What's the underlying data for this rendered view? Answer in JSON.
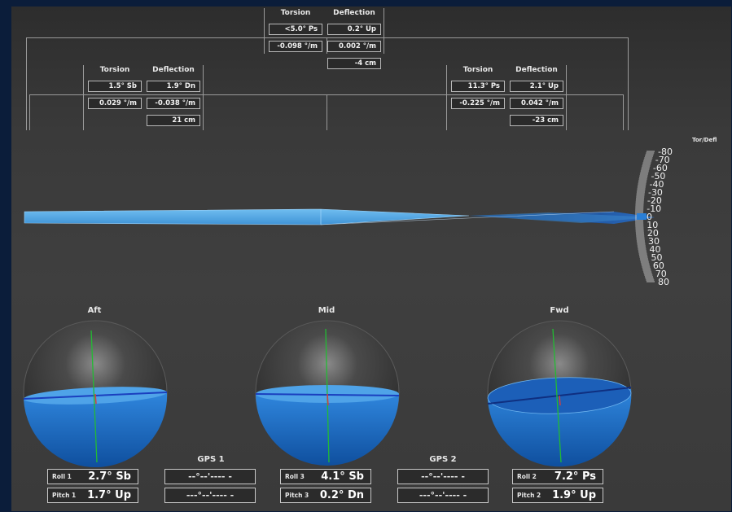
{
  "top_group": {
    "torsion_header": "Torsion",
    "deflection_header": "Deflection",
    "torsion_values": [
      "<5.0° Ps",
      "-0.098 °/m"
    ],
    "deflection_values": [
      "0.2° Up",
      "0.002 °/m",
      "-4 cm"
    ]
  },
  "left_group": {
    "torsion_header": "Torsion",
    "deflection_header": "Deflection",
    "torsion_values": [
      "1.5° Sb",
      "0.029 °/m"
    ],
    "deflection_values": [
      "1.9° Dn",
      "-0.038 °/m",
      "21 cm"
    ]
  },
  "right_group": {
    "torsion_header": "Torsion",
    "deflection_header": "Deflection",
    "torsion_values": [
      "11.3° Ps",
      "-0.225 °/m"
    ],
    "deflection_values": [
      "2.1° Up",
      "0.042 °/m",
      "-23 cm"
    ]
  },
  "scale": {
    "label": "Tor/Defl",
    "ticks": [
      "-80",
      "-70",
      "-60",
      "-50",
      "-40",
      "-30",
      "-20",
      "-10",
      "0",
      "10",
      "20",
      "30",
      "40",
      "50",
      "60",
      "70",
      "80"
    ]
  },
  "spheres": {
    "aft_title": "Aft",
    "mid_title": "Mid",
    "fwd_title": "Fwd"
  },
  "readouts": {
    "roll1_label": "Roll 1",
    "roll1_value": "2.7° Sb",
    "pitch1_label": "Pitch 1",
    "pitch1_value": "1.7° Up",
    "roll3_label": "Roll 3",
    "roll3_value": "4.1° Sb",
    "pitch3_label": "Pitch 3",
    "pitch3_value": "0.2° Dn",
    "roll2_label": "Roll 2",
    "roll2_value": "7.2° Ps",
    "pitch2_label": "Pitch 2",
    "pitch2_value": "1.9° Up"
  },
  "gps": {
    "gps1_title": "GPS 1",
    "gps1_line1": "--°--'---- -",
    "gps1_line2": "---°--'---- -",
    "gps2_title": "GPS 2",
    "gps2_line1": "--°--'---- -",
    "gps2_line2": "---°--'---- -"
  },
  "colors": {
    "background": "#0b1d3a",
    "panel": "#3a3a3a",
    "water_blue": "#1e6fc8",
    "hull_blue": "#4aa3e0"
  }
}
